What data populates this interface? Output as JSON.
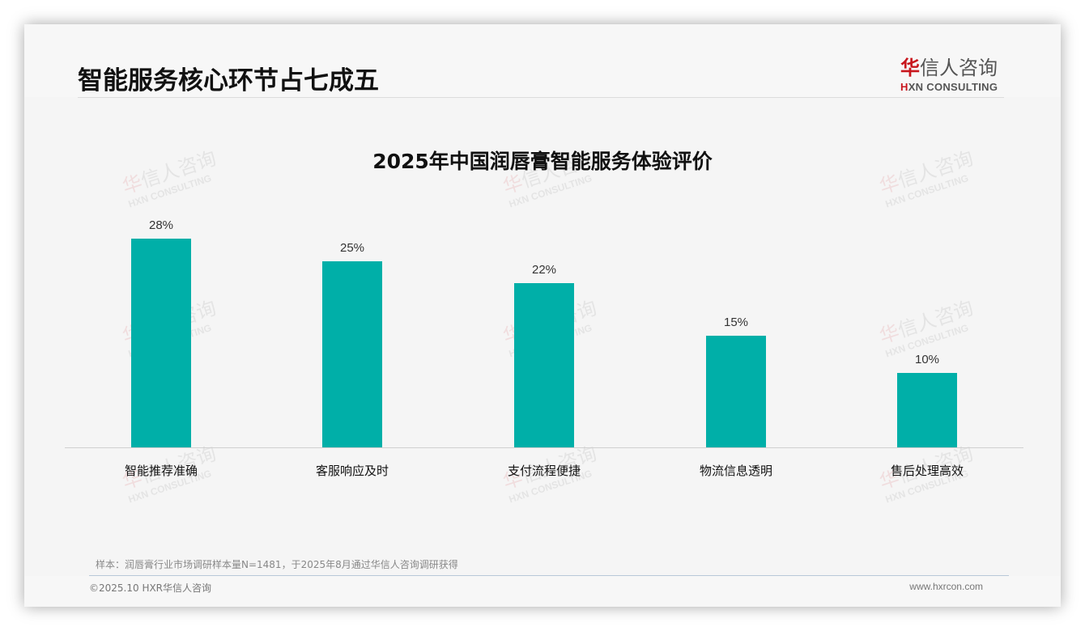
{
  "page": {
    "title": "智能服务核心环节占七成五",
    "logo": {
      "cn_red": "华",
      "cn_rest": "信人咨询",
      "en_red": "H",
      "en_rest": "XN CONSULTING"
    },
    "watermark": {
      "cn_red": "华",
      "cn_rest": "信人咨询",
      "en": "HXN CONSULTING"
    },
    "note": "样本：润唇膏行业市场调研样本量N=1481，于2025年8月通过华信人咨询调研获得",
    "copyright": "©2025.10 HXR华信人咨询",
    "website": "www.hxrcon.com"
  },
  "colors": {
    "bar": "#00afa8",
    "logo_red": "#c8161d",
    "background": "#f5f5f5"
  },
  "chart_data": {
    "type": "bar",
    "title": "2025年中国润唇膏智能服务体验评价",
    "categories": [
      "智能推荐准确",
      "客服响应及时",
      "支付流程便捷",
      "物流信息透明",
      "售后处理高效"
    ],
    "values": [
      28,
      25,
      22,
      15,
      10
    ],
    "value_labels": [
      "28%",
      "25%",
      "22%",
      "15%",
      "10%"
    ],
    "unit": "%",
    "xlabel": "",
    "ylabel": "",
    "ylim": [
      0,
      30
    ],
    "grid": false,
    "legend": "none"
  }
}
